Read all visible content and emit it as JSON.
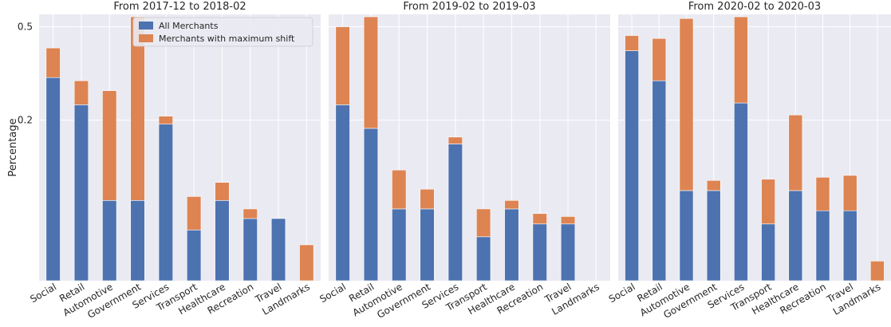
{
  "figure": {
    "ylabel": "Percentage",
    "legend": {
      "placement": "upper-right-of-first-panel",
      "entries": [
        {
          "label": "All Merchants",
          "color": "#4C72B0"
        },
        {
          "label": "Merchants with maximum shift",
          "color": "#DD8452"
        }
      ]
    },
    "background_color": "#EAEAF2",
    "grid": true
  },
  "chart_data": [
    {
      "type": "bar",
      "stacked": true,
      "title": "From 2017-12 to 2018-02",
      "categories": [
        "Social",
        "Retail",
        "Automotive",
        "Government",
        "Services",
        "Transport",
        "Healthcare",
        "Recreation",
        "Travel",
        "Landmarks"
      ],
      "series": [
        {
          "name": "All Merchants",
          "values": [
            0.32,
            0.24,
            0.05,
            0.05,
            0.19,
            0.02,
            0.05,
            0.03,
            0.03,
            0.0
          ]
        },
        {
          "name": "Merchants with maximum shift",
          "values": [
            0.1,
            0.07,
            0.23,
            0.49,
            0.02,
            0.035,
            0.025,
            0.01,
            0.0,
            0.01
          ]
        }
      ],
      "yticks": [
        0.2,
        0.5
      ],
      "ylim": [
        0.0,
        0.55
      ]
    },
    {
      "type": "bar",
      "stacked": true,
      "title": "From 2019-02 to 2019-03",
      "categories": [
        "Social",
        "Retail",
        "Automotive",
        "Government",
        "Services",
        "Transport",
        "Healthcare",
        "Recreation",
        "Travel",
        "Landmarks"
      ],
      "series": [
        {
          "name": "All Merchants",
          "values": [
            0.24,
            0.18,
            0.04,
            0.04,
            0.145,
            0.015,
            0.04,
            0.025,
            0.025,
            0.0
          ]
        },
        {
          "name": "Merchants with maximum shift",
          "values": [
            0.26,
            0.36,
            0.055,
            0.025,
            0.015,
            0.025,
            0.01,
            0.01,
            0.007,
            0.0
          ]
        }
      ],
      "yticks": [
        0.2,
        0.5
      ],
      "ylim": [
        0.0,
        0.55
      ]
    },
    {
      "type": "bar",
      "stacked": true,
      "title": "From 2020-02 to 2020-03",
      "categories": [
        "Social",
        "Retail",
        "Automotive",
        "Government",
        "Services",
        "Transport",
        "Healthcare",
        "Recreation",
        "Travel",
        "Landmarks"
      ],
      "series": [
        {
          "name": "All Merchants",
          "values": [
            0.41,
            0.31,
            0.063,
            0.063,
            0.245,
            0.025,
            0.063,
            0.038,
            0.038,
            0.0
          ]
        },
        {
          "name": "Merchants with maximum shift",
          "values": [
            0.056,
            0.145,
            0.47,
            0.015,
            0.295,
            0.055,
            0.15,
            0.045,
            0.048,
            0.003
          ]
        }
      ],
      "yticks": [
        0.2,
        0.5
      ],
      "ylim": [
        0.0,
        0.55
      ]
    }
  ]
}
